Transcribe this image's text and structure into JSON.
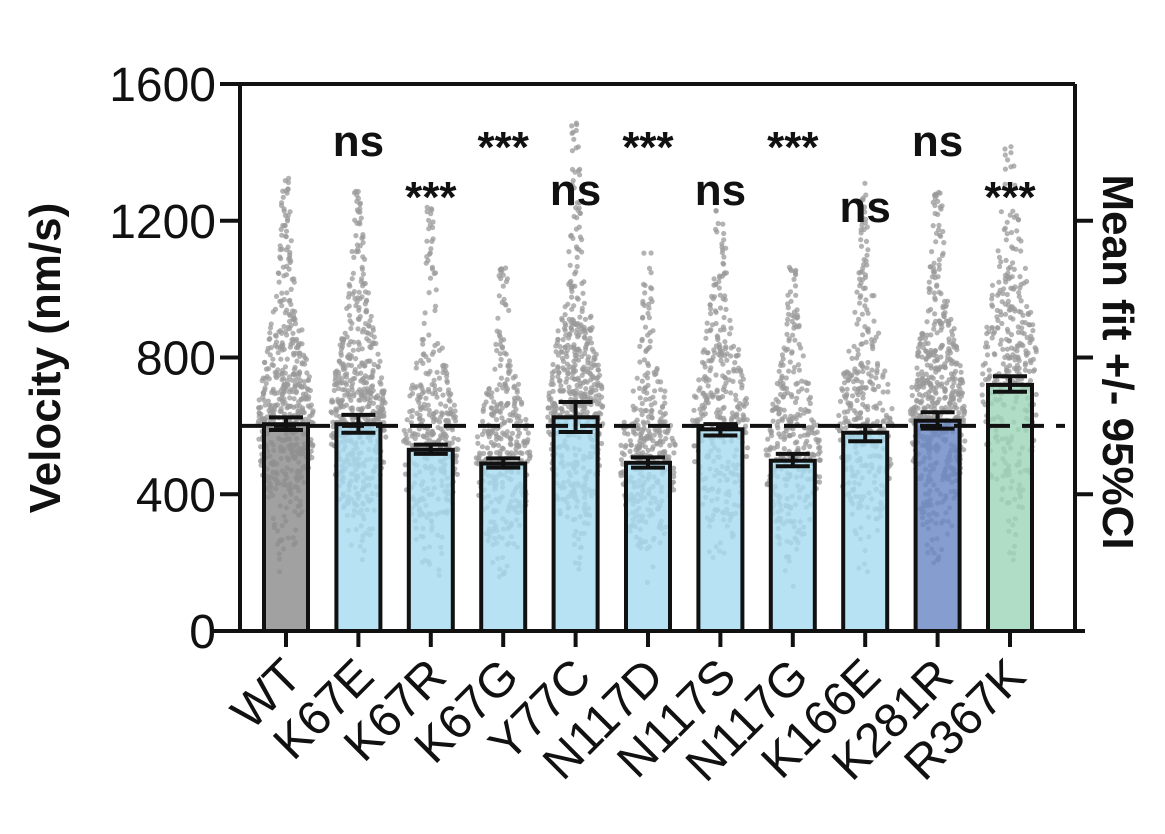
{
  "chart_data": {
    "type": "bar",
    "title": "",
    "xlabel": "",
    "ylabel": "Velocity (nm/s)",
    "ylabel_right": "Mean fit +/- 95%CI",
    "ylim": [
      0,
      1600
    ],
    "yticks": [
      0,
      400,
      800,
      1200,
      1600
    ],
    "yticks_right": [
      400,
      800,
      1200
    ],
    "reference_line": 600,
    "categories": [
      "WT",
      "K67E",
      "K67R",
      "K67G",
      "Y77C",
      "N117D",
      "N117S",
      "N117G",
      "K166E",
      "K281R",
      "R367K"
    ],
    "values": [
      605,
      605,
      530,
      490,
      625,
      492,
      590,
      498,
      580,
      615,
      720
    ],
    "ci_low": [
      588,
      580,
      518,
      478,
      582,
      478,
      572,
      482,
      555,
      592,
      700
    ],
    "ci_high": [
      625,
      632,
      545,
      505,
      670,
      508,
      605,
      518,
      600,
      640,
      745
    ],
    "max_observed": [
      1330,
      1290,
      1250,
      1070,
      1490,
      1130,
      1240,
      1070,
      1310,
      1290,
      1420
    ],
    "significance": [
      "",
      "ns",
      "***",
      "***",
      "ns",
      "***",
      "ns",
      "***",
      "ns",
      "ns",
      "***"
    ],
    "colors": {
      "WT": "#8c8c8c",
      "mutant": "#a6dcf0",
      "K281R": "#6b87c6",
      "R367K": "#9fd6b8",
      "points": "#9a9a9a",
      "axis": "#111111"
    }
  }
}
